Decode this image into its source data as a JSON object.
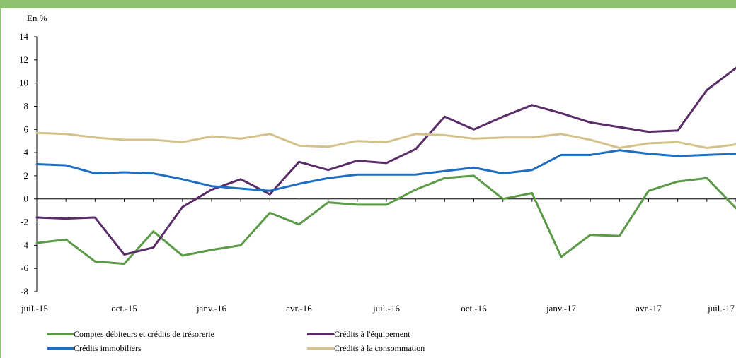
{
  "chart_data": {
    "type": "line",
    "unit_label": "En %",
    "ylim": [
      -8,
      14
    ],
    "y_ticks": [
      -8,
      -6,
      -4,
      -2,
      0,
      2,
      4,
      6,
      8,
      10,
      12,
      14
    ],
    "x_tick_labels": [
      "juil.-15",
      "oct.-15",
      "janv.-16",
      "avr.-16",
      "juil.-16",
      "oct.-16",
      "janv.-17",
      "avr.-17",
      "juil.-17"
    ],
    "x_tick_index": [
      0,
      3,
      6,
      9,
      12,
      15,
      18,
      21,
      24
    ],
    "categories": [
      "2015-07",
      "2015-08",
      "2015-09",
      "2015-10",
      "2015-11",
      "2015-12",
      "2016-01",
      "2016-02",
      "2016-03",
      "2016-04",
      "2016-05",
      "2016-06",
      "2016-07",
      "2016-08",
      "2016-09",
      "2016-10",
      "2016-11",
      "2016-12",
      "2017-01",
      "2017-02",
      "2017-03",
      "2017-04",
      "2017-05",
      "2017-06",
      "2017-07"
    ],
    "grid": false,
    "legend_position": "bottom",
    "series": [
      {
        "name": "Comptes débiteurs et crédits de trésorerie",
        "color": "#5b9a47",
        "values": [
          -3.8,
          -3.5,
          -5.4,
          -5.6,
          -2.8,
          -4.9,
          -4.4,
          -4.0,
          -1.2,
          -2.2,
          -0.3,
          -0.5,
          -0.5,
          0.8,
          1.8,
          2.0,
          0.0,
          0.5,
          -5.0,
          -3.1,
          -3.2,
          0.7,
          1.5,
          1.8,
          -0.8
        ]
      },
      {
        "name": "Crédits à l'équipement",
        "color": "#5a2d68",
        "values": [
          -1.6,
          -1.7,
          -1.6,
          -4.8,
          -4.2,
          -0.7,
          0.8,
          1.7,
          0.4,
          3.2,
          2.5,
          3.3,
          3.1,
          4.3,
          7.1,
          6.0,
          7.1,
          8.1,
          7.4,
          6.6,
          6.2,
          5.8,
          5.9,
          9.4,
          11.3
        ]
      },
      {
        "name": "Crédits immobiliers",
        "color": "#1f6ec0",
        "values": [
          3.0,
          2.9,
          2.2,
          2.3,
          2.2,
          1.7,
          1.1,
          0.9,
          0.7,
          1.3,
          1.8,
          2.1,
          2.1,
          2.1,
          2.4,
          2.7,
          2.2,
          2.5,
          3.8,
          3.8,
          4.2,
          3.9,
          3.7,
          3.8,
          3.9
        ]
      },
      {
        "name": "Crédits à la consommation",
        "color": "#d4c28a",
        "values": [
          5.7,
          5.6,
          5.3,
          5.1,
          5.1,
          4.9,
          5.4,
          5.2,
          5.6,
          4.6,
          4.5,
          5.0,
          4.9,
          5.6,
          5.5,
          5.2,
          5.3,
          5.3,
          5.6,
          5.1,
          4.4,
          4.8,
          4.9,
          4.4,
          4.7
        ]
      }
    ]
  }
}
